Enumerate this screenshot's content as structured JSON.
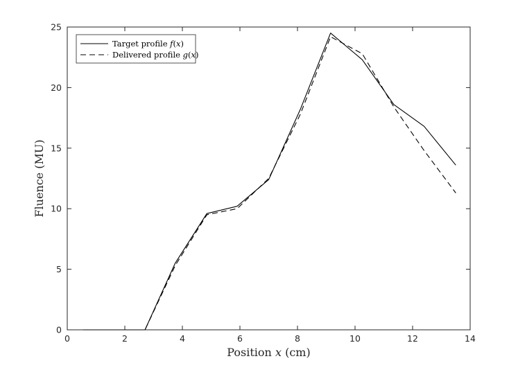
{
  "chart_data": {
    "type": "line",
    "title": "",
    "xlabel_prefix": "Position ",
    "xlabel_var": "x",
    "xlabel_suffix": " (cm)",
    "ylabel": "Fluence (MU)",
    "xlim": [
      0,
      14
    ],
    "ylim": [
      0,
      25
    ],
    "xticks": [
      0,
      2,
      4,
      6,
      8,
      10,
      12,
      14
    ],
    "yticks": [
      0,
      5,
      10,
      15,
      20,
      25
    ],
    "grid": false,
    "legend": {
      "placement": "top-left",
      "entries": [
        {
          "prefix": "Target profile ",
          "func": "f",
          "var": "x",
          "style": "solid"
        },
        {
          "prefix": "Delivered profile ",
          "func": "g",
          "var": "x",
          "style": "dashed"
        }
      ]
    },
    "series": [
      {
        "name": "Target profile f(x)",
        "style": "solid",
        "x": [
          0.55,
          1.6,
          2.7,
          3.75,
          4.85,
          5.9,
          7.0,
          8.1,
          9.15,
          10.25,
          11.35,
          12.4,
          13.5
        ],
        "y": [
          0,
          0,
          0,
          5.5,
          9.6,
          10.2,
          12.4,
          18.2,
          24.5,
          22.3,
          18.6,
          16.8,
          13.6
        ]
      },
      {
        "name": "Delivered profile g(x)",
        "style": "dashed",
        "x": [
          0.55,
          1.6,
          2.7,
          3.75,
          4.85,
          5.9,
          7.0,
          8.1,
          9.15,
          10.25,
          11.35,
          12.4,
          13.5
        ],
        "y": [
          0,
          0,
          0,
          5.3,
          9.5,
          10.0,
          12.5,
          17.8,
          24.2,
          22.8,
          18.4,
          14.8,
          11.3
        ]
      }
    ]
  }
}
